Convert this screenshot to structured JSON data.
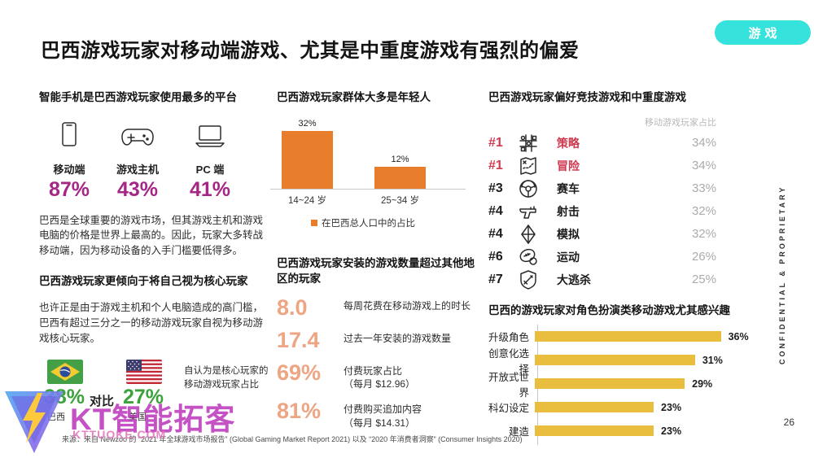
{
  "badge": {
    "label": "游戏"
  },
  "title": "巴西游戏玩家对移动端游戏、尤其是中重度游戏有强烈的偏爱",
  "left": {
    "platforms": {
      "title": "智能手机是巴西游戏玩家使用最多的平台",
      "items": [
        {
          "icon": "smartphone-icon",
          "label": "移动端",
          "value": "87%"
        },
        {
          "icon": "gamepad-icon",
          "label": "游戏主机",
          "value": "43%"
        },
        {
          "icon": "laptop-icon",
          "label": "PC 端",
          "value": "41%"
        }
      ]
    },
    "market_paragraph": "巴西是全球重要的游戏市场，但其游戏主机和游戏电脑的价格是世界上最高的。因此，玩家大多转战移动端，因为移动设备的入手门槛要低得多。",
    "core": {
      "title": "巴西游戏玩家更倾向于将自己视为核心玩家",
      "paragraph": "也许正是由于游戏主机和个人电脑造成的高门槛，巴西有超过三分之一的移动游戏玩家自视为移动游戏核心玩家。"
    },
    "compare": {
      "brazil": {
        "flag": "brazil-flag",
        "value": "38%",
        "label": "巴西"
      },
      "vs": "对比",
      "usa": {
        "flag": "usa-flag",
        "value": "27%",
        "label": "美国"
      },
      "note_line1": "自认为是核心玩家的",
      "note_line2": "移动游戏玩家占比"
    }
  },
  "middle": {
    "age_chart_title": "巴西游戏玩家群体大多是年轻人",
    "installs_title": "巴西游戏玩家安装的游戏数量超过其他地区的玩家",
    "stats": [
      {
        "value": "8.0",
        "desc": "每周花费在移动游戏上的时长"
      },
      {
        "value": "17.4",
        "desc": "过去一年安装的游戏数量"
      },
      {
        "value": "69%",
        "desc": "付费玩家占比",
        "sub": "（每月 $12.96）"
      },
      {
        "value": "81%",
        "desc": "付费购买追加内容",
        "sub": "（每月 $14.31）"
      }
    ]
  },
  "right": {
    "genres": {
      "title": "巴西游戏玩家偏好竞技游戏和中重度游戏",
      "header": "移动游戏玩家占比",
      "rows": [
        {
          "rank": "#1",
          "icon": "strategy-icon",
          "label": "策略",
          "value": "34%",
          "highlight": true
        },
        {
          "rank": "#1",
          "icon": "adventure-icon",
          "label": "冒险",
          "value": "34%",
          "highlight": true
        },
        {
          "rank": "#3",
          "icon": "racing-icon",
          "label": "赛车",
          "value": "33%",
          "highlight": false
        },
        {
          "rank": "#4",
          "icon": "shooter-icon",
          "label": "射击",
          "value": "32%",
          "highlight": false
        },
        {
          "rank": "#4",
          "icon": "simulation-icon",
          "label": "模拟",
          "value": "32%",
          "highlight": false
        },
        {
          "rank": "#6",
          "icon": "sports-icon",
          "label": "运动",
          "value": "26%",
          "highlight": false
        },
        {
          "rank": "#7",
          "icon": "battle-royale-icon",
          "label": "大逃杀",
          "value": "25%",
          "highlight": false
        }
      ]
    },
    "rpg_title": "巴西的游戏玩家对角色扮演类移动游戏尤其感兴趣"
  },
  "chart_data": [
    {
      "type": "bar",
      "title": "巴西游戏玩家群体大多是年轻人",
      "categories": [
        "14~24 岁",
        "25~34 岁"
      ],
      "values": [
        32,
        12
      ],
      "labels": [
        "32%",
        "12%"
      ],
      "legend": "在巴西总人口中的占比",
      "bar_color": "#E87D2B",
      "ylim": [
        0,
        40
      ],
      "grid": false
    },
    {
      "type": "bar",
      "orientation": "horizontal",
      "title": "巴西的游戏玩家对角色扮演类移动游戏尤其感兴趣",
      "categories": [
        "升级角色",
        "创意化选择",
        "开放式世界",
        "科幻设定",
        "建造"
      ],
      "values": [
        36,
        31,
        29,
        23,
        23
      ],
      "labels": [
        "36%",
        "31%",
        "29%",
        "23%",
        "23%"
      ],
      "bar_color": "#E9BD3E",
      "xlim": [
        0,
        40
      ],
      "grid": false
    }
  ],
  "footer": {
    "source": "来源：来自 Newzoo 的 “2021 年全球游戏市场报告” (Global Gaming Market Report 2021) 以及 “2020 年消费者洞察” (Consumer Insights 2020)",
    "page": "26",
    "confidential": "CONFIDENTIAL & PROPRIETARY"
  },
  "watermark": {
    "name": "KT智能拓客",
    "domain": "KTTUOKE.COM"
  },
  "colors": {
    "badge_cyan": "#35E2DC",
    "platform_magenta": "#A62686",
    "age_bar_orange": "#E87D2B",
    "stat_salmon": "#EDA584",
    "rank_red": "#CE3A50",
    "value_gray": "#ABABAB",
    "rpg_yellow": "#E9BD3E",
    "compare_green": "#3CA23C",
    "watermark_magenta": "#BC35BC",
    "watermark_pink": "#E06FB8"
  }
}
